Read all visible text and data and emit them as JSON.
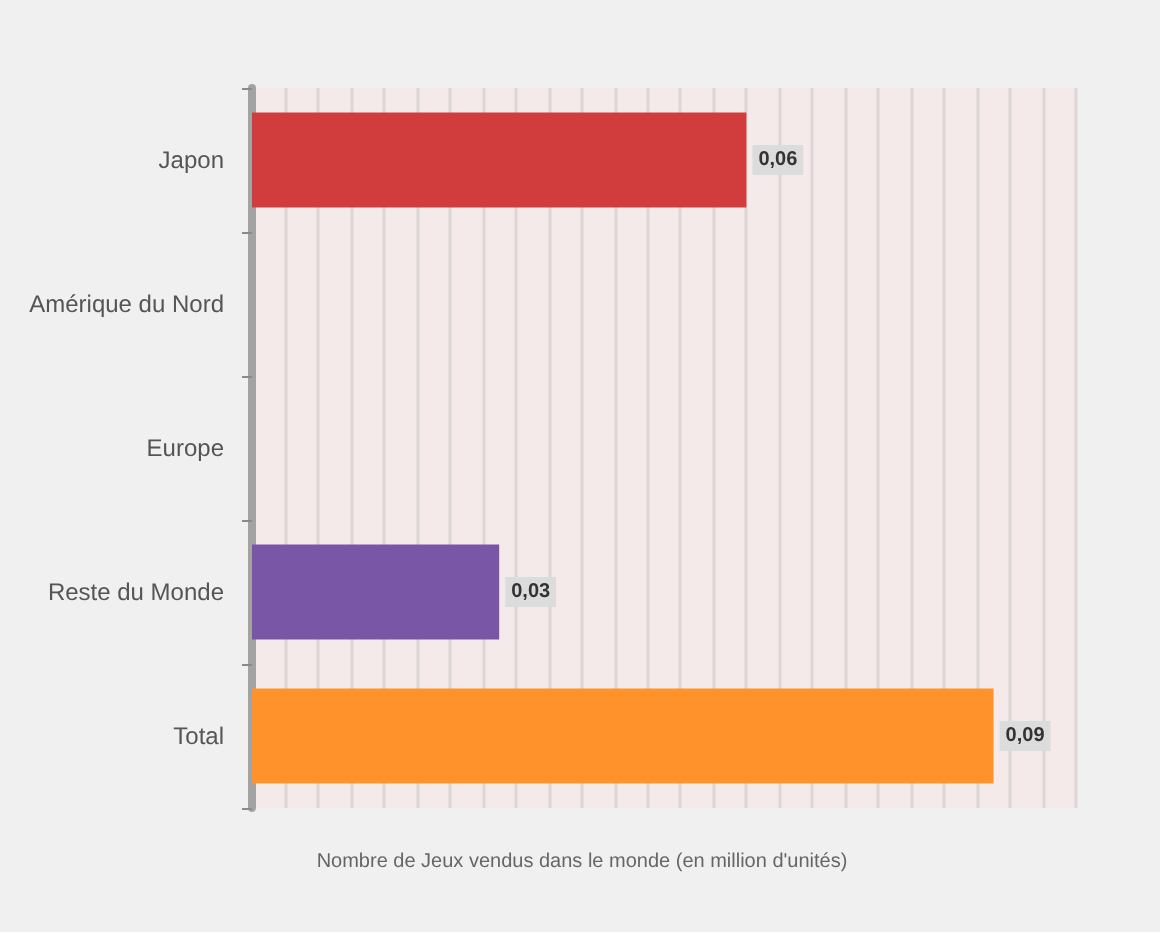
{
  "chart_data": {
    "type": "bar",
    "orientation": "horizontal",
    "categories": [
      "Japon",
      "Amérique du Nord",
      "Europe",
      "Reste du Monde",
      "Total"
    ],
    "values": [
      0.06,
      0,
      0,
      0.03,
      0.09
    ],
    "colors": [
      "#d13d3d",
      "#1d3a63",
      "#44561f",
      "#7a56a6",
      "#ff922b"
    ],
    "value_labels": [
      "0,06",
      null,
      null,
      "0,03",
      "0,09"
    ],
    "xlabel": "Nombre de Jeux vendus dans le monde (en million d'unités)",
    "xlim": [
      0,
      0.1
    ],
    "xticks": [
      {
        "value": 0,
        "label": null
      },
      {
        "value": 0.004,
        "label": null
      },
      {
        "value": 0.008,
        "label": null
      },
      {
        "value": 0.012,
        "label": null
      },
      {
        "value": 0.016,
        "label": null
      },
      {
        "value": 0.02,
        "label": null
      },
      {
        "value": 0.024,
        "label": null
      },
      {
        "value": 0.028,
        "label": null
      },
      {
        "value": 0.032,
        "label": null
      },
      {
        "value": 0.036,
        "label": null
      },
      {
        "value": 0.04,
        "label": null
      },
      {
        "value": 0.044,
        "label": null
      },
      {
        "value": 0.048,
        "label": null
      },
      {
        "value": 0.052,
        "label": null
      },
      {
        "value": 0.056,
        "label": null
      },
      {
        "value": 0.06,
        "label": null
      },
      {
        "value": 0.064,
        "label": null
      },
      {
        "value": 0.068,
        "label": null
      },
      {
        "value": 0.072,
        "label": null
      },
      {
        "value": 0.076,
        "label": null
      },
      {
        "value": 0.08,
        "label": null
      },
      {
        "value": 0.084,
        "label": null
      },
      {
        "value": 0.088,
        "label": null
      },
      {
        "value": 0.092,
        "label": null
      },
      {
        "value": 0.096,
        "label": null
      },
      {
        "value": 0.1,
        "label": null
      }
    ],
    "grid": "x",
    "tick_labels": "y"
  }
}
